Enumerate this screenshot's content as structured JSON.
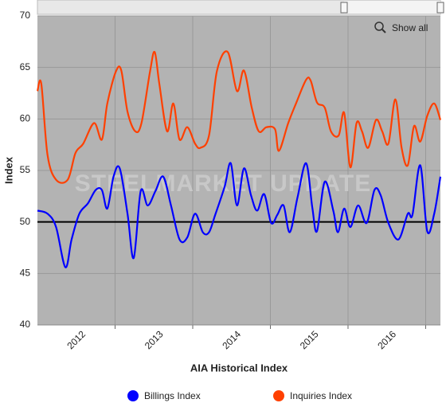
{
  "chart_data": {
    "type": "line",
    "x_title": "AIA Historical Index",
    "y_title": "Index",
    "watermark": "STEELMARKET UPDATE",
    "button": "Show all",
    "reference_line": 50,
    "xlim": [
      2012.0,
      2017.19
    ],
    "xticks": [
      {
        "value": 2012.5,
        "label": "2012"
      },
      {
        "value": 2013.5,
        "label": "2013"
      },
      {
        "value": 2014.5,
        "label": "2014"
      },
      {
        "value": 2015.5,
        "label": "2015"
      },
      {
        "value": 2016.5,
        "label": "2016"
      }
    ],
    "xgrid": [
      2013,
      2014,
      2015,
      2016,
      2017
    ],
    "ylim": [
      40,
      70
    ],
    "yticks": [
      40,
      45,
      50,
      55,
      60,
      65,
      70
    ],
    "grid": true,
    "legend": "bottom",
    "series": [
      {
        "name": "Billings Index",
        "color": "#0000ff",
        "x": [
          2012.0,
          2012.13,
          2012.24,
          2012.36,
          2012.44,
          2012.54,
          2012.65,
          2012.75,
          2012.83,
          2012.9,
          2012.98,
          2013.06,
          2013.16,
          2013.24,
          2013.33,
          2013.42,
          2013.52,
          2013.62,
          2013.72,
          2013.83,
          2013.93,
          2014.03,
          2014.13,
          2014.21,
          2014.29,
          2014.41,
          2014.49,
          2014.57,
          2014.66,
          2014.75,
          2014.83,
          2014.92,
          2015.01,
          2015.09,
          2015.17,
          2015.25,
          2015.35,
          2015.46,
          2015.54,
          2015.6,
          2015.7,
          2015.81,
          2015.87,
          2015.95,
          2016.03,
          2016.13,
          2016.24,
          2016.34,
          2016.42,
          2016.52,
          2016.65,
          2016.77,
          2016.83,
          2016.93,
          2017.02,
          2017.11,
          2017.19
        ],
        "values": [
          51.1,
          50.8,
          49.5,
          45.6,
          48.3,
          50.8,
          51.8,
          53.1,
          53.1,
          51.3,
          54.4,
          55.2,
          50.8,
          46.5,
          53.0,
          51.6,
          53.0,
          54.4,
          51.6,
          48.3,
          48.5,
          50.8,
          49.0,
          49.0,
          50.7,
          53.4,
          55.7,
          51.6,
          55.2,
          52.6,
          51.1,
          52.7,
          49.9,
          50.7,
          51.6,
          49.0,
          52.4,
          55.7,
          51.4,
          49.1,
          53.9,
          51.1,
          49.0,
          51.3,
          49.5,
          51.6,
          49.9,
          53.1,
          52.6,
          49.9,
          48.3,
          50.8,
          50.7,
          55.5,
          49.1,
          50.8,
          54.4
        ]
      },
      {
        "name": "Inquiries Index",
        "color": "#ff4000",
        "x": [
          2012.0,
          2012.05,
          2012.13,
          2012.24,
          2012.39,
          2012.49,
          2012.59,
          2012.73,
          2012.83,
          2012.9,
          2013.01,
          2013.08,
          2013.16,
          2013.26,
          2013.34,
          2013.45,
          2013.51,
          2013.57,
          2013.67,
          2013.75,
          2013.83,
          2013.93,
          2014.03,
          2014.1,
          2014.21,
          2014.31,
          2014.45,
          2014.57,
          2014.66,
          2014.76,
          2014.85,
          2014.95,
          2015.06,
          2015.11,
          2015.23,
          2015.33,
          2015.46,
          2015.52,
          2015.6,
          2015.7,
          2015.78,
          2015.88,
          2015.95,
          2016.03,
          2016.11,
          2016.18,
          2016.26,
          2016.36,
          2016.44,
          2016.52,
          2016.61,
          2016.69,
          2016.77,
          2016.85,
          2016.93,
          2017.02,
          2017.11,
          2017.19
        ],
        "values": [
          62.7,
          63.4,
          56.5,
          54.1,
          54.1,
          56.7,
          57.6,
          59.6,
          58.0,
          61.5,
          64.6,
          64.7,
          60.7,
          58.8,
          59.6,
          64.6,
          66.5,
          63.4,
          58.8,
          61.5,
          58.0,
          59.2,
          57.6,
          57.2,
          58.4,
          64.6,
          66.5,
          62.7,
          64.7,
          61.1,
          58.8,
          59.2,
          59.0,
          56.9,
          59.6,
          61.5,
          63.8,
          63.7,
          61.6,
          61.1,
          58.8,
          58.4,
          60.6,
          55.3,
          59.6,
          58.8,
          57.2,
          59.9,
          58.8,
          57.6,
          61.9,
          57.2,
          55.5,
          59.3,
          57.8,
          60.3,
          61.5,
          59.9
        ]
      }
    ]
  }
}
